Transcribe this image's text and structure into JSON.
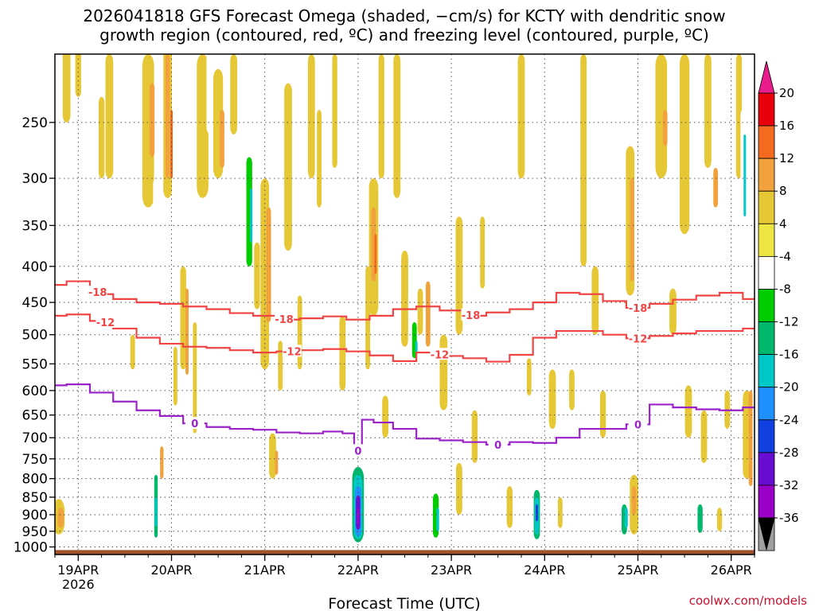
{
  "chart_data": {
    "type": "heatmap",
    "title": [
      "2026041818 GFS Forecast Omega (shaded, −cm/s) for KCTY with dendritic snow",
      "growth region (contoured, red, ºC) and freezing level (contoured, purple, ºC)"
    ],
    "xlabel": "Forecast Time (UTC)",
    "ylabel": "",
    "credit": "coolwx.com/models",
    "x_ticks": [
      {
        "label": "19APR",
        "sub": "2026",
        "hour": 6
      },
      {
        "label": "20APR",
        "hour": 30
      },
      {
        "label": "21APR",
        "hour": 54
      },
      {
        "label": "22APR",
        "hour": 78
      },
      {
        "label": "23APR",
        "hour": 102
      },
      {
        "label": "24APR",
        "hour": 126
      },
      {
        "label": "25APR",
        "hour": 150
      },
      {
        "label": "26APR",
        "hour": 174
      }
    ],
    "xlim": [
      0,
      180
    ],
    "y_ticks": [
      250,
      300,
      350,
      400,
      450,
      500,
      550,
      600,
      650,
      700,
      750,
      800,
      850,
      900,
      950,
      1000
    ],
    "ylim": [
      1025,
      200
    ],
    "colorbar": {
      "ticks": [
        20,
        16,
        12,
        8,
        4,
        -4,
        -8,
        -12,
        -16,
        -20,
        -24,
        -28,
        -32,
        -36
      ],
      "colors": [
        "#e8000c",
        "#f46b20",
        "#f2a23c",
        "#e6c837",
        "#ede642",
        "#ffffff",
        "#00cc00",
        "#00b86b",
        "#00c8c8",
        "#1e90ff",
        "#1040e0",
        "#6a0dd2",
        "#9a00c8",
        "#a0a0a0"
      ],
      "over_color": "#e81c8c",
      "under_color": "#000000"
    },
    "contours": [
      {
        "name": "dendritic-top",
        "value": -18,
        "color": "#ef4545",
        "label": "-18",
        "x": [
          0,
          6,
          12,
          18,
          24,
          30,
          36,
          42,
          48,
          54,
          60,
          66,
          72,
          78,
          84,
          90,
          96,
          102,
          108,
          114,
          120,
          126,
          132,
          138,
          144,
          150,
          156,
          162,
          168,
          174,
          180
        ],
        "p": [
          425,
          420,
          438,
          445,
          450,
          452,
          456,
          460,
          466,
          470,
          476,
          474,
          471,
          476,
          470,
          460,
          456,
          462,
          470,
          465,
          460,
          450,
          436,
          438,
          448,
          458,
          452,
          446,
          440,
          436,
          445
        ],
        "label_x": [
          11,
          59,
          107,
          150
        ]
      },
      {
        "name": "dendritic-bottom",
        "value": -12,
        "color": "#ef4545",
        "label": "-12",
        "x": [
          0,
          6,
          12,
          18,
          24,
          30,
          36,
          42,
          48,
          54,
          60,
          66,
          72,
          78,
          84,
          90,
          96,
          102,
          108,
          114,
          120,
          126,
          132,
          138,
          144,
          150,
          156,
          162,
          168,
          174,
          180
        ],
        "p": [
          470,
          468,
          478,
          490,
          505,
          515,
          520,
          522,
          526,
          530,
          528,
          526,
          524,
          528,
          535,
          545,
          530,
          536,
          540,
          546,
          534,
          505,
          494,
          494,
          500,
          506,
          502,
          498,
          494,
          494,
          490
        ],
        "label_x": [
          13,
          61,
          99,
          150
        ]
      },
      {
        "name": "freezing-level",
        "value": 0,
        "color": "#9b22c8",
        "label": "0",
        "x": [
          0,
          6,
          12,
          18,
          24,
          30,
          36,
          42,
          48,
          54,
          60,
          66,
          72,
          76,
          78,
          80,
          84,
          90,
          96,
          102,
          108,
          114,
          120,
          126,
          132,
          138,
          144,
          150,
          156,
          162,
          168,
          174,
          180
        ],
        "p": [
          590,
          588,
          604,
          622,
          640,
          652,
          668,
          676,
          680,
          682,
          688,
          690,
          686,
          690,
          730,
          660,
          666,
          680,
          702,
          706,
          710,
          716,
          710,
          712,
          700,
          680,
          680,
          670,
          628,
          634,
          638,
          640,
          634
        ],
        "label_x": [
          36,
          78,
          114,
          150
        ]
      }
    ],
    "cells": [
      {
        "t": 1,
        "p0": 855,
        "p1": 960,
        "w": 3,
        "v": 6
      },
      {
        "t": 1.5,
        "p0": 880,
        "p1": 940,
        "w": 1.6,
        "v": 11
      },
      {
        "t": 3,
        "p0": 160,
        "p1": 250,
        "w": 2,
        "v": 6
      },
      {
        "t": 6,
        "p0": 190,
        "p1": 230,
        "w": 1.5,
        "v": 6
      },
      {
        "t": 12,
        "p0": 230,
        "p1": 300,
        "w": 1.5,
        "v": 6
      },
      {
        "t": 14,
        "p0": 200,
        "p1": 300,
        "w": 2,
        "v": 6
      },
      {
        "t": 17,
        "p0": 200,
        "p1": 290,
        "w": 3,
        "v": -6
      },
      {
        "t": 18,
        "p0": 250,
        "p1": 330,
        "w": 1.4,
        "v": -6
      },
      {
        "t": 18.5,
        "p0": 340,
        "p1": 420,
        "w": 1.2,
        "v": -6
      },
      {
        "t": 20,
        "p0": 500,
        "p1": 560,
        "w": 1.2,
        "v": 6
      },
      {
        "t": 24,
        "p0": 200,
        "p1": 330,
        "w": 3,
        "v": 6
      },
      {
        "t": 25,
        "p0": 220,
        "p1": 280,
        "w": 1.3,
        "v": 10
      },
      {
        "t": 26,
        "p0": 300,
        "p1": 410,
        "w": 1.5,
        "v": -6
      },
      {
        "t": 26,
        "p0": 740,
        "p1": 985,
        "w": 1.2,
        "v": -6
      },
      {
        "t": 26,
        "p0": 790,
        "p1": 970,
        "w": 0.9,
        "v": -14
      },
      {
        "t": 26,
        "p0": 850,
        "p1": 935,
        "w": 0.5,
        "v": -20
      },
      {
        "t": 27.5,
        "p0": 720,
        "p1": 800,
        "w": 0.9,
        "v": 8
      },
      {
        "t": 29,
        "p0": 160,
        "p1": 320,
        "w": 2.2,
        "v": 6
      },
      {
        "t": 29,
        "p0": 200,
        "p1": 300,
        "w": 1.2,
        "v": 10
      },
      {
        "t": 30,
        "p0": 240,
        "p1": 300,
        "w": 0.6,
        "v": 14
      },
      {
        "t": 31,
        "p0": 520,
        "p1": 630,
        "w": 1,
        "v": 6
      },
      {
        "t": 33,
        "p0": 400,
        "p1": 560,
        "w": 1.5,
        "v": 6
      },
      {
        "t": 34,
        "p0": 430,
        "p1": 570,
        "w": 0.8,
        "v": 10
      },
      {
        "t": 36,
        "p0": 480,
        "p1": 690,
        "w": 1,
        "v": 6
      },
      {
        "t": 38,
        "p0": 200,
        "p1": 320,
        "w": 3,
        "v": 6
      },
      {
        "t": 40,
        "p0": 180,
        "p1": 260,
        "w": 2,
        "v": -6
      },
      {
        "t": 42,
        "p0": 210,
        "p1": 300,
        "w": 2.5,
        "v": 6
      },
      {
        "t": 43,
        "p0": 240,
        "p1": 290,
        "w": 1.2,
        "v": 10
      },
      {
        "t": 46,
        "p0": 200,
        "p1": 260,
        "w": 1.8,
        "v": 6
      },
      {
        "t": 49,
        "p0": 250,
        "p1": 420,
        "w": 3,
        "v": -6
      },
      {
        "t": 50,
        "p0": 280,
        "p1": 400,
        "w": 1.5,
        "v": -12
      },
      {
        "t": 50.5,
        "p0": 310,
        "p1": 370,
        "w": 0.6,
        "v": -17
      },
      {
        "t": 52,
        "p0": 370,
        "p1": 460,
        "w": 1.5,
        "v": 6
      },
      {
        "t": 54,
        "p0": 300,
        "p1": 560,
        "w": 2.2,
        "v": 6
      },
      {
        "t": 55,
        "p0": 330,
        "p1": 480,
        "w": 1.2,
        "v": 10
      },
      {
        "t": 56,
        "p0": 690,
        "p1": 800,
        "w": 1.8,
        "v": 6
      },
      {
        "t": 57,
        "p0": 730,
        "p1": 790,
        "w": 0.8,
        "v": 10
      },
      {
        "t": 58,
        "p0": 510,
        "p1": 600,
        "w": 1.2,
        "v": 6
      },
      {
        "t": 60,
        "p0": 220,
        "p1": 380,
        "w": 2,
        "v": 6
      },
      {
        "t": 63,
        "p0": 440,
        "p1": 560,
        "w": 1.2,
        "v": 6
      },
      {
        "t": 66,
        "p0": 200,
        "p1": 300,
        "w": 1.8,
        "v": 6
      },
      {
        "t": 68,
        "p0": 240,
        "p1": 330,
        "w": 1.2,
        "v": 6
      },
      {
        "t": 72,
        "p0": 200,
        "p1": 290,
        "w": 1.3,
        "v": 6
      },
      {
        "t": 74,
        "p0": 470,
        "p1": 600,
        "w": 1.6,
        "v": 6
      },
      {
        "t": 78,
        "p0": 740,
        "p1": 985,
        "w": 4,
        "v": -7
      },
      {
        "t": 78,
        "p0": 770,
        "p1": 985,
        "w": 3,
        "v": -14
      },
      {
        "t": 78,
        "p0": 790,
        "p1": 975,
        "w": 2.2,
        "v": -19
      },
      {
        "t": 78,
        "p0": 820,
        "p1": 965,
        "w": 1.6,
        "v": -24
      },
      {
        "t": 78,
        "p0": 845,
        "p1": 945,
        "w": 1.1,
        "v": -30
      },
      {
        "t": 78,
        "p0": 880,
        "p1": 930,
        "w": 0.6,
        "v": -34
      },
      {
        "t": 80,
        "p0": 270,
        "p1": 520,
        "w": 2,
        "v": -7
      },
      {
        "t": 80.5,
        "p0": 400,
        "p1": 560,
        "w": 1.2,
        "v": 6
      },
      {
        "t": 82,
        "p0": 300,
        "p1": 470,
        "w": 2.4,
        "v": 6
      },
      {
        "t": 82,
        "p0": 330,
        "p1": 420,
        "w": 1.2,
        "v": 10
      },
      {
        "t": 82.5,
        "p0": 360,
        "p1": 410,
        "w": 0.6,
        "v": 14
      },
      {
        "t": 84,
        "p0": 200,
        "p1": 300,
        "w": 1.5,
        "v": 6
      },
      {
        "t": 85,
        "p0": 610,
        "p1": 700,
        "w": 1.6,
        "v": 6
      },
      {
        "t": 88,
        "p0": 200,
        "p1": 320,
        "w": 1.8,
        "v": 6
      },
      {
        "t": 90,
        "p0": 380,
        "p1": 520,
        "w": 1.8,
        "v": 6
      },
      {
        "t": 92,
        "p0": 430,
        "p1": 560,
        "w": 2.2,
        "v": -7
      },
      {
        "t": 92.5,
        "p0": 480,
        "p1": 540,
        "w": 1.2,
        "v": -12
      },
      {
        "t": 93,
        "p0": 510,
        "p1": 530,
        "w": 0.6,
        "v": -17
      },
      {
        "t": 94,
        "p0": 430,
        "p1": 500,
        "w": 1.4,
        "v": 6
      },
      {
        "t": 96,
        "p0": 420,
        "p1": 520,
        "w": 1.2,
        "v": 10
      },
      {
        "t": 98,
        "p0": 780,
        "p1": 985,
        "w": 2.2,
        "v": -7
      },
      {
        "t": 98,
        "p0": 840,
        "p1": 970,
        "w": 1.5,
        "v": -12
      },
      {
        "t": 98.5,
        "p0": 880,
        "p1": 950,
        "w": 0.7,
        "v": -17
      },
      {
        "t": 100,
        "p0": 500,
        "p1": 640,
        "w": 2,
        "v": 6
      },
      {
        "t": 101,
        "p0": 830,
        "p1": 960,
        "w": 1.5,
        "v": -7
      },
      {
        "t": 104,
        "p0": 760,
        "p1": 900,
        "w": 1.6,
        "v": 6
      },
      {
        "t": 104,
        "p0": 340,
        "p1": 500,
        "w": 1.8,
        "v": 6
      },
      {
        "t": 106,
        "p0": 880,
        "p1": 985,
        "w": 2,
        "v": -7
      },
      {
        "t": 108,
        "p0": 640,
        "p1": 760,
        "w": 1.5,
        "v": 6
      },
      {
        "t": 110,
        "p0": 340,
        "p1": 430,
        "w": 1.2,
        "v": 6
      },
      {
        "t": 112,
        "p0": 820,
        "p1": 960,
        "w": 1.8,
        "v": -7
      },
      {
        "t": 117,
        "p0": 820,
        "p1": 940,
        "w": 1.5,
        "v": 6
      },
      {
        "t": 120,
        "p0": 200,
        "p1": 300,
        "w": 1.8,
        "v": 6
      },
      {
        "t": 122,
        "p0": 540,
        "p1": 610,
        "w": 1.2,
        "v": 6
      },
      {
        "t": 124,
        "p0": 800,
        "p1": 985,
        "w": 2.2,
        "v": -7
      },
      {
        "t": 124,
        "p0": 830,
        "p1": 975,
        "w": 1.6,
        "v": -14
      },
      {
        "t": 124,
        "p0": 850,
        "p1": 960,
        "w": 1.1,
        "v": -19
      },
      {
        "t": 124,
        "p0": 870,
        "p1": 920,
        "w": 0.6,
        "v": -26
      },
      {
        "t": 127,
        "p0": 830,
        "p1": 900,
        "w": 1.2,
        "v": -7
      },
      {
        "t": 128,
        "p0": 560,
        "p1": 680,
        "w": 1.8,
        "v": 6
      },
      {
        "t": 130,
        "p0": 850,
        "p1": 940,
        "w": 1.2,
        "v": 6
      },
      {
        "t": 132,
        "p0": 260,
        "p1": 410,
        "w": 2,
        "v": -7
      },
      {
        "t": 133,
        "p0": 560,
        "p1": 640,
        "w": 1.4,
        "v": 6
      },
      {
        "t": 136,
        "p0": 200,
        "p1": 400,
        "w": 1.6,
        "v": 6
      },
      {
        "t": 137,
        "p0": 550,
        "p1": 690,
        "w": 1.6,
        "v": -7
      },
      {
        "t": 139,
        "p0": 400,
        "p1": 500,
        "w": 1.8,
        "v": 6
      },
      {
        "t": 141,
        "p0": 600,
        "p1": 700,
        "w": 1.5,
        "v": 6
      },
      {
        "t": 146,
        "p0": 850,
        "p1": 970,
        "w": 2,
        "v": -7
      },
      {
        "t": 146.5,
        "p0": 870,
        "p1": 960,
        "w": 1.4,
        "v": -14
      },
      {
        "t": 147,
        "p0": 880,
        "p1": 940,
        "w": 0.8,
        "v": -18
      },
      {
        "t": 148,
        "p0": 270,
        "p1": 440,
        "w": 2.2,
        "v": 6
      },
      {
        "t": 148.5,
        "p0": 300,
        "p1": 420,
        "w": 1.1,
        "v": 10
      },
      {
        "t": 149,
        "p0": 790,
        "p1": 960,
        "w": 2.2,
        "v": 6
      },
      {
        "t": 149,
        "p0": 820,
        "p1": 900,
        "w": 1.2,
        "v": 10
      },
      {
        "t": 152,
        "p0": 400,
        "p1": 600,
        "w": 1.6,
        "v": -7
      },
      {
        "t": 154,
        "p0": 830,
        "p1": 960,
        "w": 1.6,
        "v": -7
      },
      {
        "t": 156,
        "p0": 200,
        "p1": 300,
        "w": 3,
        "v": 6
      },
      {
        "t": 157,
        "p0": 240,
        "p1": 270,
        "w": 1.2,
        "v": 10
      },
      {
        "t": 159,
        "p0": 430,
        "p1": 500,
        "w": 1.8,
        "v": 6
      },
      {
        "t": 162,
        "p0": 200,
        "p1": 360,
        "w": 2.5,
        "v": 6
      },
      {
        "t": 163,
        "p0": 590,
        "p1": 700,
        "w": 1.8,
        "v": 6
      },
      {
        "t": 166,
        "p0": 850,
        "p1": 975,
        "w": 2,
        "v": -7
      },
      {
        "t": 166,
        "p0": 870,
        "p1": 955,
        "w": 1.3,
        "v": -14
      },
      {
        "t": 167,
        "p0": 640,
        "p1": 760,
        "w": 1.6,
        "v": 6
      },
      {
        "t": 168,
        "p0": 200,
        "p1": 290,
        "w": 1.8,
        "v": 6
      },
      {
        "t": 170,
        "p0": 290,
        "p1": 330,
        "w": 1.2,
        "v": 10
      },
      {
        "t": 171,
        "p0": 880,
        "p1": 950,
        "w": 1.3,
        "v": 6
      },
      {
        "t": 173,
        "p0": 600,
        "p1": 680,
        "w": 1.4,
        "v": 6
      },
      {
        "t": 176,
        "p0": 200,
        "p1": 300,
        "w": 1.5,
        "v": 6
      },
      {
        "t": 177,
        "p0": 240,
        "p1": 450,
        "w": 1.2,
        "v": -7
      },
      {
        "t": 177.5,
        "p0": 260,
        "p1": 340,
        "w": 0.6,
        "v": -17
      },
      {
        "t": 178,
        "p0": 600,
        "p1": 800,
        "w": 2,
        "v": 6
      },
      {
        "t": 179,
        "p0": 600,
        "p1": 820,
        "w": 1,
        "v": 10
      }
    ],
    "ground": {
      "p_top": 1010,
      "color": "#a0522d"
    }
  }
}
